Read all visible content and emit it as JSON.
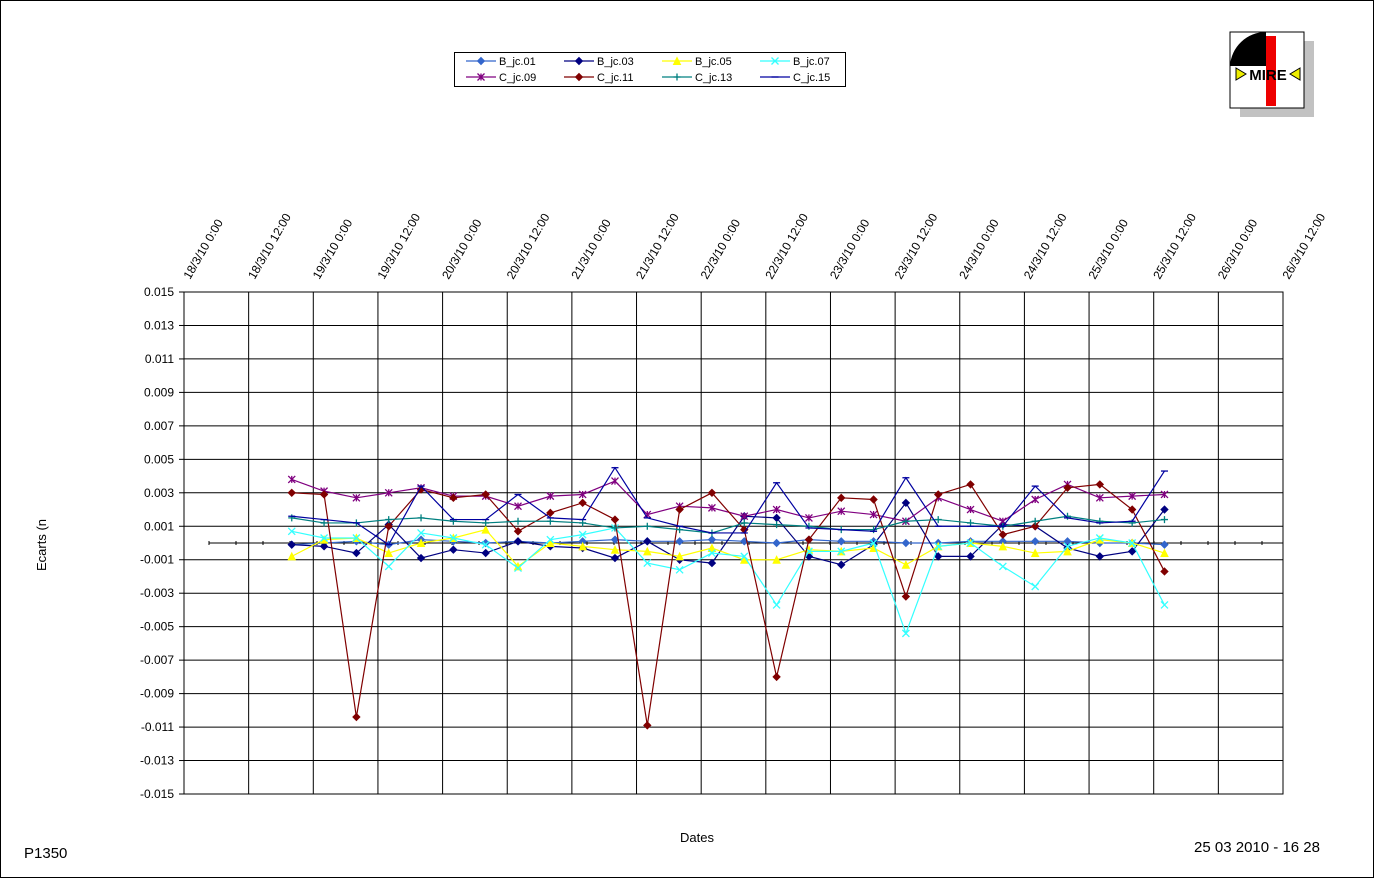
{
  "chart_data": {
    "type": "line",
    "x_label": "Dates",
    "y_label": "Ecarts (n",
    "footer_left": "P1350",
    "footer_right": "25 03 2010 - 16 28",
    "logo_text": "MIRE",
    "grid": true,
    "legend": "top",
    "xlim": [
      0,
      204
    ],
    "xticks": [
      {
        "value": 0,
        "label": "18/3/10 0:00"
      },
      {
        "value": 12,
        "label": "18/3/10 12:00"
      },
      {
        "value": 24,
        "label": "19/3/10 0:00"
      },
      {
        "value": 36,
        "label": "19/3/10 12:00"
      },
      {
        "value": 48,
        "label": "20/3/10 0:00"
      },
      {
        "value": 60,
        "label": "20/3/10 12:00"
      },
      {
        "value": 72,
        "label": "21/3/10 0:00"
      },
      {
        "value": 84,
        "label": "21/3/10 12:00"
      },
      {
        "value": 96,
        "label": "22/3/10 0:00"
      },
      {
        "value": 108,
        "label": "22/3/10 12:00"
      },
      {
        "value": 120,
        "label": "23/3/10 0:00"
      },
      {
        "value": 132,
        "label": "23/3/10 12:00"
      },
      {
        "value": 144,
        "label": "24/3/10 0:00"
      },
      {
        "value": 156,
        "label": "24/3/10 12:00"
      },
      {
        "value": 168,
        "label": "25/3/10 0:00"
      },
      {
        "value": 180,
        "label": "25/3/10 12:00"
      },
      {
        "value": 192,
        "label": "26/3/10 0:00"
      },
      {
        "value": 204,
        "label": "26/3/10 12:00"
      }
    ],
    "ylim": [
      -0.015,
      0.015
    ],
    "yticks": [
      0.015,
      0.013,
      0.011,
      0.009,
      0.007,
      0.005,
      0.003,
      0.001,
      -0.001,
      -0.003,
      -0.005,
      -0.007,
      -0.009,
      -0.011,
      -0.013,
      -0.015
    ],
    "x": [
      20,
      26,
      32,
      38,
      44,
      50,
      56,
      62,
      68,
      74,
      80,
      86,
      92,
      98,
      104,
      110,
      116,
      122,
      128,
      134,
      140,
      146,
      152,
      158,
      164,
      170,
      176,
      182
    ],
    "series": [
      {
        "name": "B_jc.01",
        "color": "#3366cc",
        "marker": "diamond",
        "values": [
          -0.0001,
          0,
          0.0001,
          -0.0001,
          0.0002,
          0.0001,
          0,
          0.0001,
          0,
          0.0001,
          0.0002,
          0.0001,
          0.0001,
          0.0002,
          0.0001,
          0,
          0.0002,
          0.0001,
          0.0001,
          0,
          0,
          0.0001,
          0.0001,
          0.0001,
          0.0001,
          0,
          0,
          -0.0001
        ]
      },
      {
        "name": "B_jc.03",
        "color": "#000080",
        "marker": "diamond",
        "values": [
          -0.0001,
          -0.0002,
          -0.0006,
          0.0011,
          -0.0009,
          -0.0004,
          -0.0006,
          0.0001,
          -0.0002,
          -0.0003,
          -0.0009,
          0.0001,
          -0.001,
          -0.0012,
          0.0016,
          0.0015,
          -0.0008,
          -0.0013,
          -0.0001,
          0.0024,
          -0.0008,
          -0.0008,
          0.0011,
          0.001,
          -0.0003,
          -0.0008,
          -0.0005,
          0.002
        ]
      },
      {
        "name": "B_jc.05",
        "color": "#ffff00",
        "marker": "triangle",
        "values": [
          -0.0008,
          0.0002,
          0.0003,
          -0.0006,
          0,
          0.0003,
          0.0008,
          -0.0014,
          0,
          -0.0002,
          -0.0004,
          -0.0005,
          -0.0008,
          -0.0003,
          -0.001,
          -0.001,
          -0.0004,
          -0.0005,
          -0.0003,
          -0.0013,
          -0.0002,
          0,
          -0.0002,
          -0.0006,
          -0.0005,
          0.0002,
          0,
          -0.0006
        ]
      },
      {
        "name": "B_jc.07",
        "color": "#33ffff",
        "marker": "x",
        "values": [
          0.0007,
          0.0003,
          0.0003,
          -0.0014,
          0.0006,
          0.0003,
          -0.0001,
          -0.0015,
          0.0002,
          0.0005,
          0.0009,
          -0.0012,
          -0.0016,
          -0.0006,
          -0.0008,
          -0.0037,
          -0.0005,
          -0.0005,
          0,
          -0.0054,
          -0.0002,
          0,
          -0.0014,
          -0.0026,
          -0.0002,
          0.0003,
          0,
          -0.0037
        ]
      },
      {
        "name": "C_jc.09",
        "color": "#800080",
        "marker": "star",
        "values": [
          0.0038,
          0.0031,
          0.0027,
          0.003,
          0.0033,
          0.0028,
          0.0028,
          0.0022,
          0.0028,
          0.0029,
          0.0037,
          0.0017,
          0.0022,
          0.0021,
          0.0016,
          0.002,
          0.0015,
          0.0019,
          0.0017,
          0.0013,
          0.0027,
          0.002,
          0.0013,
          0.0026,
          0.0035,
          0.0027,
          0.0028,
          0.0029
        ]
      },
      {
        "name": "C_jc.11",
        "color": "#800000",
        "marker": "diamond",
        "values": [
          0.003,
          0.0029,
          -0.0104,
          0.001,
          0.0032,
          0.0027,
          0.0029,
          0.0007,
          0.0018,
          0.0024,
          0.0014,
          -0.0109,
          0.002,
          0.003,
          0.0008,
          -0.008,
          0.0002,
          0.0027,
          0.0026,
          -0.0032,
          0.0029,
          0.0035,
          0.0005,
          0.001,
          0.0033,
          0.0035,
          0.002,
          -0.0017
        ]
      },
      {
        "name": "C_jc.13",
        "color": "#008080",
        "marker": "plus",
        "values": [
          0.0015,
          0.0012,
          0.0012,
          0.0014,
          0.0015,
          0.0013,
          0.0012,
          0.0013,
          0.0013,
          0.0012,
          0.0009,
          0.001,
          0.0008,
          0.0006,
          0.0012,
          0.0011,
          0.001,
          0.0008,
          0.0008,
          0.0013,
          0.0014,
          0.0012,
          0.001,
          0.0013,
          0.0016,
          0.0013,
          0.0012,
          0.0014
        ]
      },
      {
        "name": "C_jc.15",
        "color": "#0000a0",
        "marker": "dash",
        "values": [
          0.0016,
          0.0014,
          0.0012,
          -0.0001,
          0.0034,
          0.0014,
          0.0014,
          0.0029,
          0.0015,
          0.0014,
          0.0045,
          0.0015,
          0.001,
          0.0006,
          0.0006,
          0.0036,
          0.0009,
          0.0008,
          0.0007,
          0.0039,
          0.001,
          0.001,
          0.001,
          0.0034,
          0.0015,
          0.0012,
          0.0013,
          0.0043
        ]
      }
    ]
  }
}
